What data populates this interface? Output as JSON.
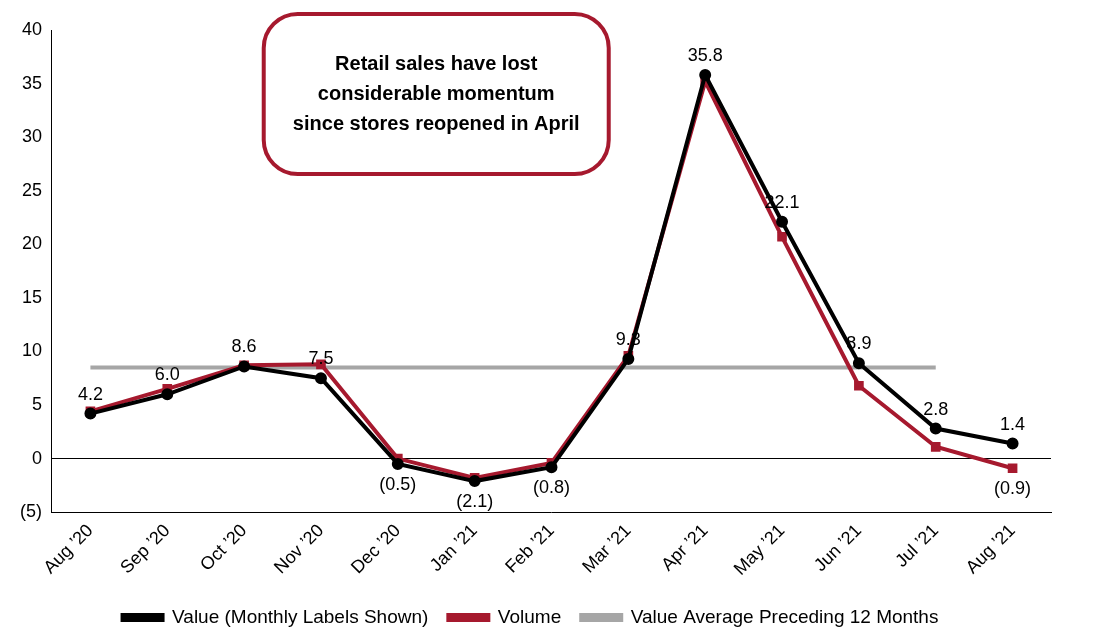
{
  "chart_data": {
    "type": "line",
    "annotation": [
      "Retail sales have lost",
      "considerable momentum",
      "since stores reopened in April"
    ],
    "categories": [
      "Aug ’20",
      "Sep ’20",
      "Oct ’20",
      "Nov ’20",
      "Dec ’20",
      "Jan ’21",
      "Feb ’21",
      "Mar ’21",
      "Apr ’21",
      "May ’21",
      "Jun ’21",
      "Jul ’21",
      "Aug ’21"
    ],
    "series": [
      {
        "name": "Value (Monthly Labels Shown)",
        "color": "#000000",
        "marker": "circle",
        "line_style": "solid",
        "data_labels": true,
        "values": [
          4.2,
          6.0,
          8.6,
          7.5,
          -0.5,
          -2.1,
          -0.8,
          9.3,
          35.8,
          22.1,
          8.9,
          2.8,
          1.4
        ],
        "value_labels": [
          "4.2",
          "6.0",
          "8.6",
          "7.5",
          "(0.5)",
          "(2.1)",
          "(0.8)",
          "9.3",
          "35.8",
          "22.1",
          "8.9",
          "2.8",
          "1.4"
        ]
      },
      {
        "name": "Volume",
        "color": "#A6192E",
        "marker": "square",
        "line_style": "solid",
        "data_labels": true,
        "values": [
          4.4,
          6.5,
          8.7,
          8.8,
          0.0,
          -1.8,
          -0.4,
          9.6,
          35.2,
          20.7,
          6.8,
          1.1,
          -0.9
        ],
        "value_labels": [
          null,
          null,
          null,
          null,
          null,
          null,
          null,
          null,
          null,
          null,
          null,
          null,
          "(0.9)"
        ]
      },
      {
        "name": "Value Average Preceding 12 Months",
        "color": "#A6A6A6",
        "marker": "none",
        "line_style": "solid",
        "values": [
          8.5,
          8.5,
          8.5,
          8.5,
          8.5,
          8.5,
          8.5,
          8.5,
          8.5,
          8.5,
          8.5,
          8.5,
          null
        ]
      }
    ],
    "ylim": [
      -5,
      40
    ],
    "yticks": [
      {
        "value": -5,
        "label": "(5)"
      },
      0,
      5,
      10,
      15,
      20,
      25,
      30,
      35,
      40
    ],
    "grid": false,
    "legend": "bottom"
  }
}
